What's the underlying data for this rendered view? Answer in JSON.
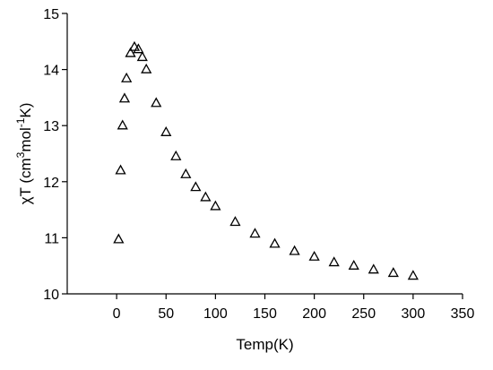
{
  "chart_data": {
    "type": "scatter",
    "title": "",
    "xlabel": "Temp(K)",
    "ylabel": {
      "prefix": "χT (cm",
      "sup1": "3",
      "mid": "mol",
      "sup2": "-1",
      "suffix": "K)"
    },
    "xlim": [
      -50,
      350
    ],
    "ylim": [
      10,
      15
    ],
    "xticks": [
      0,
      50,
      100,
      150,
      200,
      250,
      300,
      350
    ],
    "yticks": [
      10,
      11,
      12,
      13,
      14,
      15
    ],
    "grid": false,
    "marker": "open-triangle",
    "series": [
      {
        "x": [
          2,
          4,
          6,
          8,
          10,
          14,
          18,
          22,
          26,
          30,
          40,
          50,
          60,
          70,
          80,
          90,
          100,
          120,
          140,
          160,
          180,
          200,
          220,
          240,
          260,
          280,
          300
        ],
        "y": [
          10.97,
          12.2,
          13.0,
          13.48,
          13.84,
          14.29,
          14.4,
          14.36,
          14.22,
          14.0,
          13.4,
          12.88,
          12.45,
          12.13,
          11.9,
          11.72,
          11.56,
          11.28,
          11.07,
          10.89,
          10.76,
          10.66,
          10.56,
          10.5,
          10.43,
          10.37,
          10.32
        ]
      }
    ]
  }
}
